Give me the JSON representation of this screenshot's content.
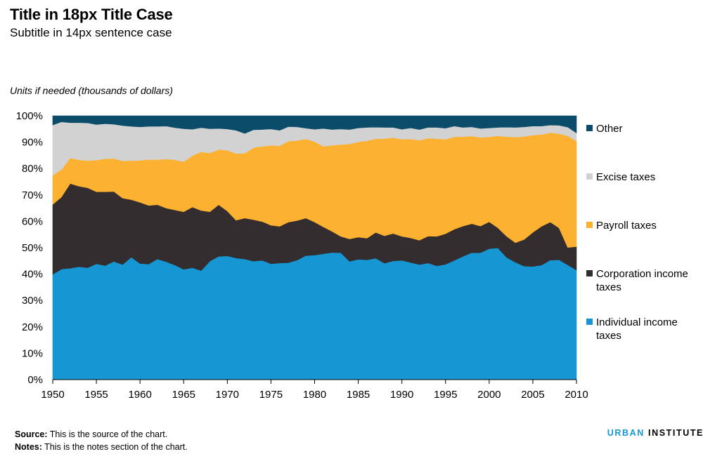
{
  "header": {
    "title": "Title in 18px Title Case",
    "subtitle": "Subtitle in 14px sentence case",
    "units": "Units if needed (thousands of dollars)"
  },
  "footer": {
    "source_label": "Source:",
    "source_text": " This is the source of the chart.",
    "notes_label": "Notes:",
    "notes_text": " This is the notes section of the chart.",
    "brand_part1": "URBAN",
    "brand_part2": " INSTITUTE"
  },
  "colors": {
    "individual": "#1696d2",
    "corporation": "#332d2f",
    "payroll": "#fdb130",
    "excise": "#d2d2d2",
    "other": "#0a4c6a"
  },
  "chart_data": {
    "type": "area",
    "stacked": true,
    "percent": true,
    "x": [
      1950,
      1951,
      1952,
      1953,
      1954,
      1955,
      1956,
      1957,
      1958,
      1959,
      1960,
      1961,
      1962,
      1963,
      1964,
      1965,
      1966,
      1967,
      1968,
      1969,
      1970,
      1971,
      1972,
      1973,
      1974,
      1975,
      1976,
      1977,
      1978,
      1979,
      1980,
      1981,
      1982,
      1983,
      1984,
      1985,
      1986,
      1987,
      1988,
      1989,
      1990,
      1991,
      1992,
      1993,
      1994,
      1995,
      1996,
      1997,
      1998,
      1999,
      2000,
      2001,
      2002,
      2003,
      2004,
      2005,
      2006,
      2007,
      2008,
      2009,
      2010
    ],
    "ylim": [
      0,
      100
    ],
    "y_ticks": [
      "0%",
      "10%",
      "20%",
      "30%",
      "40%",
      "50%",
      "60%",
      "70%",
      "80%",
      "90%",
      "100%"
    ],
    "x_ticks": [
      "1950",
      "1955",
      "1960",
      "1965",
      "1970",
      "1975",
      "1980",
      "1985",
      "1990",
      "1995",
      "2000",
      "2005",
      "2010"
    ],
    "legend_position": "right",
    "series": [
      {
        "name": "Individual income taxes",
        "color": "#1696d2",
        "values": [
          39.9,
          41.9,
          42.2,
          42.8,
          42.4,
          43.9,
          43.2,
          44.8,
          43.6,
          46.4,
          44.0,
          43.8,
          45.7,
          44.7,
          43.4,
          41.8,
          42.4,
          41.3,
          44.9,
          46.7,
          46.9,
          46.1,
          45.7,
          44.9,
          45.2,
          43.9,
          44.2,
          44.3,
          45.3,
          47.0,
          47.2,
          47.7,
          48.2,
          48.1,
          44.8,
          45.6,
          45.4,
          46.0,
          44.1,
          45.0,
          45.2,
          44.4,
          43.6,
          44.2,
          43.1,
          43.7,
          45.2,
          46.7,
          48.1,
          48.1,
          49.6,
          49.9,
          46.3,
          44.5,
          43.0,
          42.9,
          43.4,
          45.3,
          45.4,
          43.5,
          41.5
        ]
      },
      {
        "name": "Corporation income taxes",
        "color": "#332d2f",
        "values": [
          26.5,
          27.3,
          32.1,
          30.5,
          30.3,
          27.3,
          28.0,
          26.5,
          25.2,
          21.8,
          23.2,
          22.2,
          20.6,
          20.3,
          20.9,
          21.8,
          23.0,
          22.8,
          18.7,
          19.6,
          17.0,
          14.3,
          15.5,
          15.7,
          14.7,
          14.6,
          13.9,
          15.4,
          15.0,
          14.2,
          12.5,
          10.2,
          8.0,
          6.2,
          8.5,
          8.4,
          8.2,
          9.8,
          10.4,
          10.4,
          9.1,
          9.3,
          9.2,
          10.2,
          11.2,
          11.6,
          11.8,
          11.5,
          11.0,
          10.1,
          10.2,
          7.6,
          8.0,
          7.4,
          10.1,
          12.9,
          14.7,
          14.4,
          12.1,
          6.6,
          8.9
        ]
      },
      {
        "name": "Payroll taxes",
        "color": "#fdb130",
        "values": [
          11.0,
          10.4,
          9.7,
          10.0,
          10.3,
          12.0,
          12.5,
          12.5,
          14.1,
          14.8,
          15.9,
          17.4,
          17.1,
          18.6,
          19.0,
          19.0,
          19.5,
          22.2,
          22.3,
          20.9,
          23.0,
          25.3,
          24.6,
          27.3,
          28.5,
          30.3,
          30.5,
          30.7,
          30.3,
          30.0,
          30.5,
          30.5,
          32.6,
          34.8,
          36.0,
          36.1,
          36.9,
          35.5,
          36.8,
          36.3,
          36.8,
          37.5,
          37.9,
          37.1,
          37.0,
          35.8,
          35.0,
          33.9,
          33.2,
          33.6,
          32.2,
          34.9,
          37.8,
          40.0,
          39.0,
          36.9,
          34.8,
          33.9,
          35.7,
          42.3,
          40.0
        ]
      },
      {
        "name": "Excise taxes",
        "color": "#d2d2d2",
        "values": [
          19.1,
          18.1,
          13.4,
          14.1,
          14.3,
          13.5,
          13.3,
          13.0,
          13.4,
          13.0,
          12.7,
          12.6,
          12.6,
          12.5,
          12.2,
          12.5,
          10.0,
          9.2,
          9.2,
          8.0,
          8.1,
          8.8,
          7.5,
          6.8,
          6.4,
          6.2,
          5.9,
          5.5,
          5.2,
          4.1,
          4.7,
          6.8,
          6.0,
          5.9,
          5.5,
          5.3,
          5.1,
          4.4,
          4.3,
          3.9,
          3.8,
          4.2,
          4.1,
          4.1,
          4.3,
          4.2,
          4.1,
          3.5,
          3.5,
          3.4,
          3.4,
          3.2,
          3.6,
          3.7,
          3.7,
          3.4,
          3.2,
          2.9,
          3.2,
          3.3,
          3.1
        ]
      },
      {
        "name": "Other",
        "color": "#0a4c6a",
        "values": [
          3.5,
          2.3,
          2.6,
          2.6,
          2.7,
          3.3,
          3.0,
          3.2,
          3.7,
          4.0,
          4.2,
          4.0,
          4.0,
          3.9,
          4.5,
          4.9,
          5.1,
          4.5,
          4.9,
          4.8,
          5.0,
          5.5,
          6.7,
          5.3,
          5.2,
          5.0,
          5.5,
          4.1,
          4.2,
          4.7,
          5.1,
          4.8,
          5.2,
          5.0,
          5.2,
          4.6,
          4.4,
          4.3,
          4.4,
          4.4,
          5.1,
          4.6,
          5.2,
          4.4,
          4.4,
          4.7,
          3.9,
          4.4,
          4.2,
          4.8,
          4.6,
          4.4,
          4.3,
          4.4,
          4.2,
          3.9,
          3.9,
          3.5,
          3.6,
          4.3,
          6.5
        ]
      }
    ]
  }
}
